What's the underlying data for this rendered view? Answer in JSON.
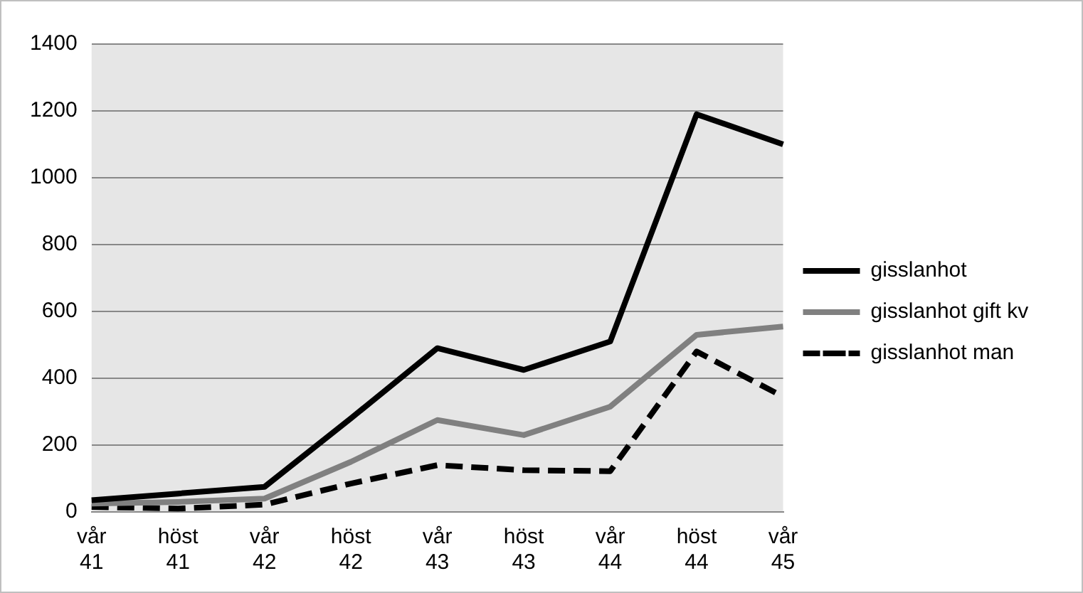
{
  "chart_data": {
    "type": "line",
    "categories": [
      "vår 41",
      "höst 41",
      "vår 42",
      "höst 42",
      "vår 43",
      "höst 43",
      "vår 44",
      "höst 44",
      "vår 45"
    ],
    "series": [
      {
        "name": "gisslanhot",
        "color": "#000000",
        "values": [
          35,
          55,
          75,
          280,
          490,
          425,
          510,
          1190,
          1100
        ]
      },
      {
        "name": "gisslanhot gift kv",
        "color": "#808080",
        "values": [
          25,
          30,
          40,
          150,
          275,
          230,
          315,
          530,
          555
        ]
      },
      {
        "name": "gisslanhot man",
        "color": "#000000",
        "values": [
          15,
          10,
          22,
          85,
          140,
          125,
          122,
          480,
          345
        ],
        "line_style": "dashed"
      }
    ],
    "ylim": [
      0,
      1400
    ],
    "yticks": [
      0,
      200,
      400,
      600,
      800,
      1000,
      1200,
      1400
    ],
    "grid": "y",
    "legend": "right",
    "marker": "none"
  }
}
